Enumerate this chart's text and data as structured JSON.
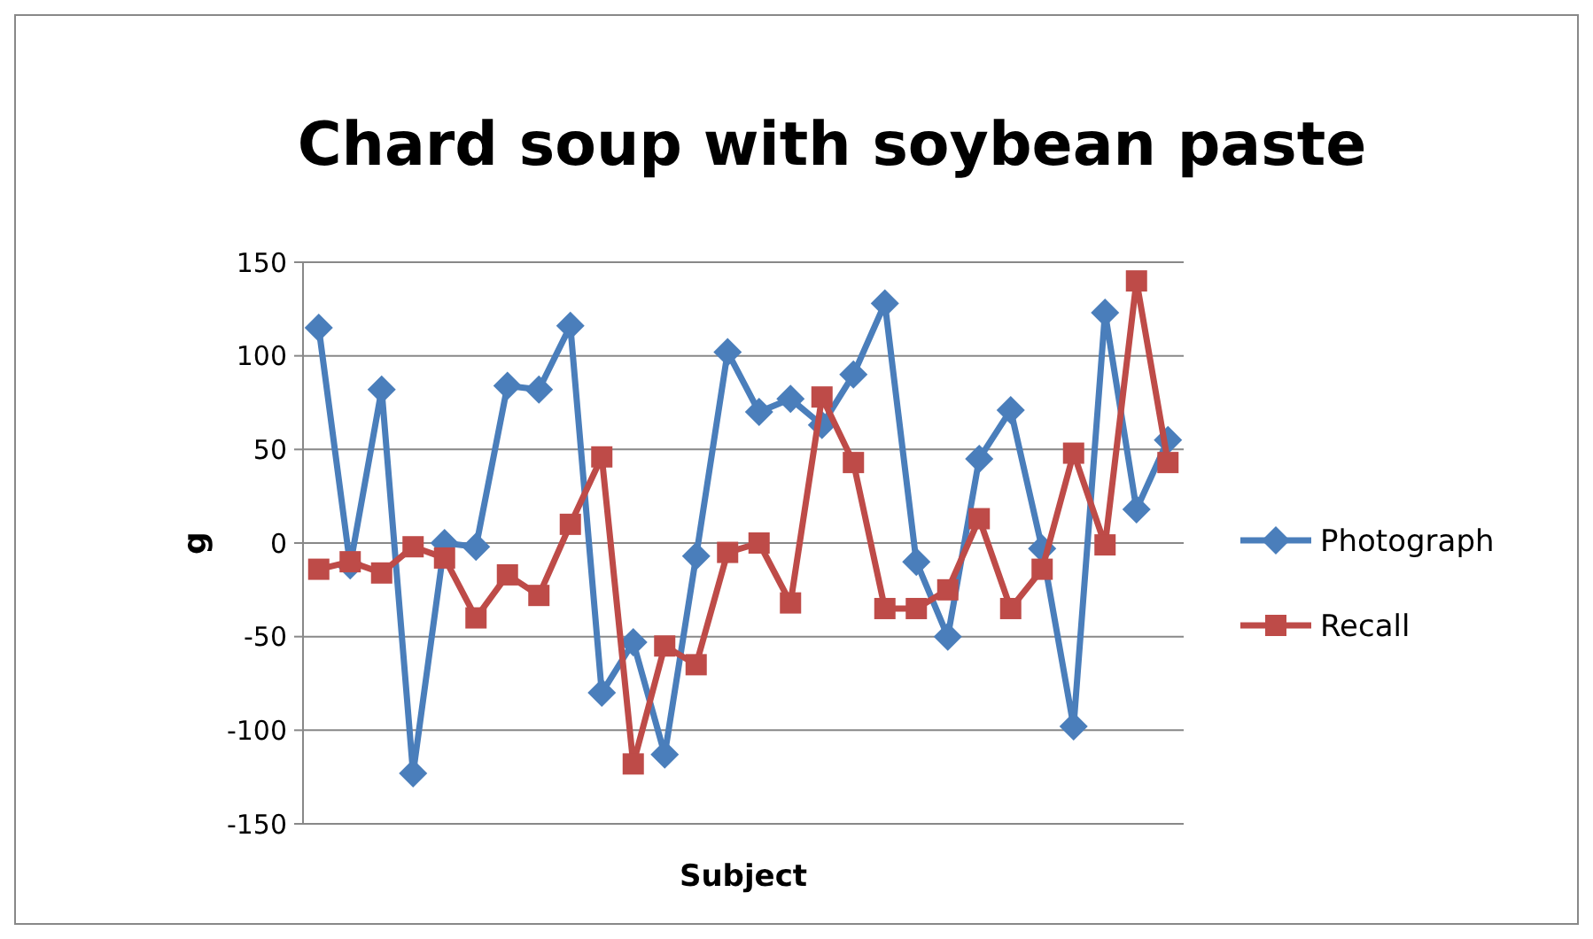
{
  "chart_data": {
    "type": "line",
    "title": "Chard soup with soybean paste",
    "xlabel": "Subject",
    "ylabel": "g",
    "categories": [
      null,
      null,
      null,
      null,
      null,
      null,
      null,
      null,
      null,
      null,
      null,
      null,
      null,
      null,
      null,
      null,
      null,
      null,
      null,
      null,
      null,
      null,
      null,
      null,
      null,
      null,
      null,
      null
    ],
    "series": [
      {
        "name": "Photograph",
        "color": "#4a7ebb",
        "marker": "diamond",
        "values": [
          115,
          -12,
          82,
          -123,
          0,
          -2,
          84,
          82,
          116,
          -80,
          -53,
          -113,
          -7,
          102,
          70,
          77,
          63,
          90,
          128,
          -10,
          -50,
          45,
          71,
          -3,
          -98,
          123,
          18,
          55
        ]
      },
      {
        "name": "Recall",
        "color": "#be4b48",
        "marker": "square",
        "values": [
          -14,
          -10,
          -16,
          -2,
          -8,
          -40,
          -17,
          -28,
          10,
          46,
          -118,
          -55,
          -65,
          -5,
          0,
          -32,
          78,
          43,
          -35,
          -35,
          -25,
          13,
          -35,
          -14,
          48,
          -1,
          140,
          43
        ]
      }
    ],
    "ylim": [
      -150,
      150
    ],
    "yticks": [
      -150,
      -100,
      -50,
      0,
      50,
      100,
      150
    ],
    "grid": "y",
    "legend": "right"
  }
}
